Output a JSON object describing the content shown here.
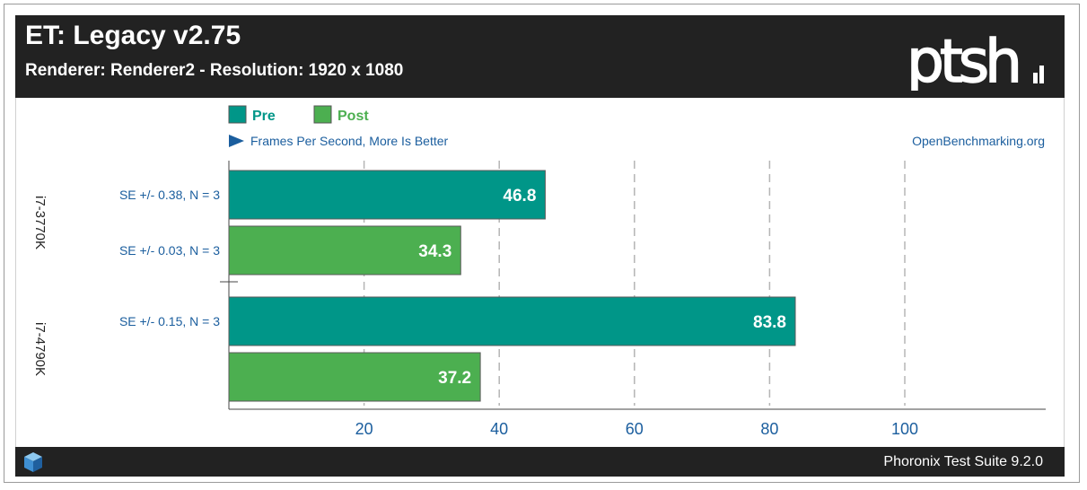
{
  "header": {
    "title": "ET: Legacy v2.75",
    "subtitle": "Renderer: Renderer2 - Resolution: 1920 x 1080",
    "logo_text": "ptsh"
  },
  "footer": {
    "text": "Phoronix Test Suite 9.2.0"
  },
  "colors": {
    "header_bg": "#222222",
    "pre": "#009688",
    "post": "#4caf50",
    "label_blue": "#1b5e9e",
    "grid": "#b5b5b5"
  },
  "chart_data": {
    "type": "bar",
    "orientation": "horizontal",
    "measure_label": "Frames Per Second, More Is Better",
    "source_label": "OpenBenchmarking.org",
    "legend_position": "top-left",
    "grid": true,
    "xlim": [
      0,
      120
    ],
    "xticks": [
      20,
      40,
      60,
      80,
      100
    ],
    "categories": [
      "i7-3770K",
      "i7-4790K"
    ],
    "series": [
      {
        "name": "Pre",
        "color": "#009688",
        "values": [
          46.8,
          83.8
        ],
        "errors": [
          "SE +/- 0.38, N = 3",
          "SE +/- 0.15, N = 3"
        ]
      },
      {
        "name": "Post",
        "color": "#4caf50",
        "values": [
          34.3,
          37.2
        ],
        "errors": [
          "SE +/- 0.03, N = 3",
          ""
        ]
      }
    ]
  }
}
